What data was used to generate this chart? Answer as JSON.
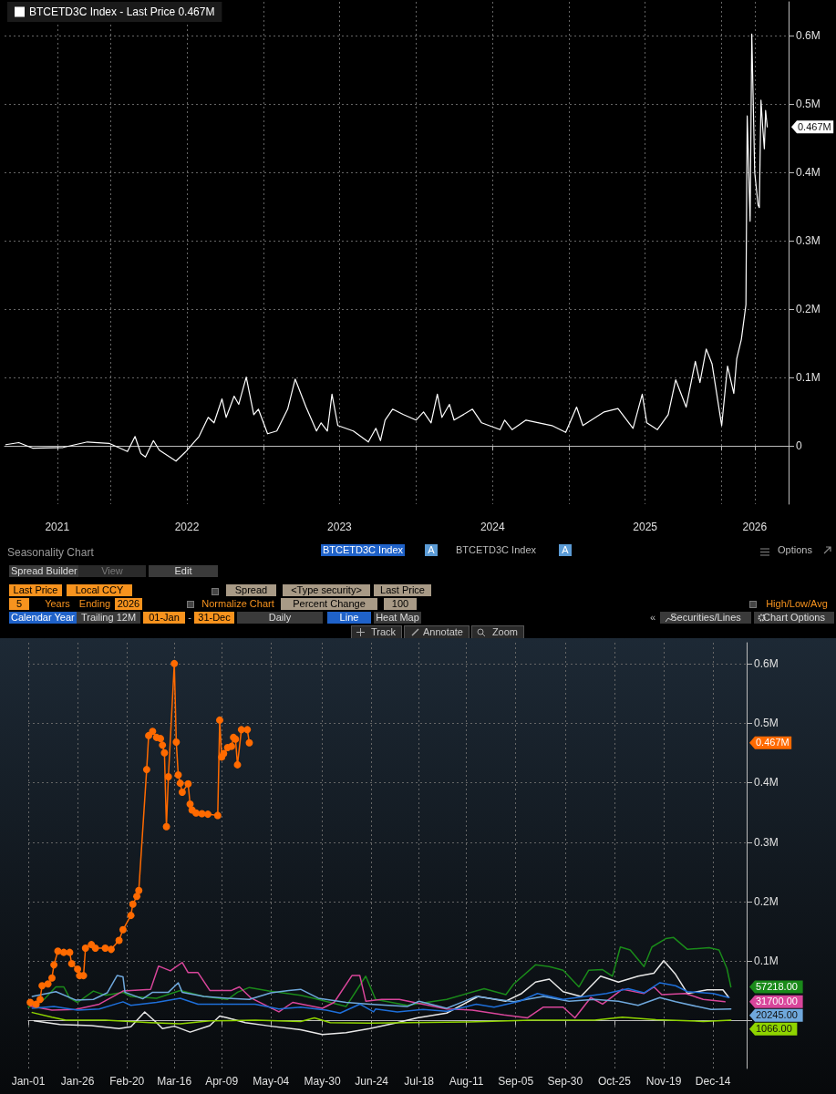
{
  "chart_data": [
    {
      "type": "line",
      "marker": "none",
      "grid": true,
      "legend": "top left",
      "x": [
        "2021-04-25",
        "2021-05-26",
        "2021-06-28",
        "2021-09-09",
        "2021-11-06",
        "2021-12-28",
        "2022-02-10",
        "2022-02-28",
        "2022-03-14",
        "2022-03-25",
        "2022-04-13",
        "2022-04-27",
        "2022-06-06",
        "2022-06-28",
        "2022-07-31",
        "2022-08-22",
        "2022-09-05",
        "2022-09-24",
        "2022-10-04",
        "2022-10-23",
        "2022-11-03",
        "2022-11-21",
        "2022-12-09",
        "2022-12-20",
        "2023-01-11",
        "2023-02-02",
        "2023-02-28",
        "2023-03-18",
        "2023-04-13",
        "2023-05-08",
        "2023-05-19",
        "2023-06-03",
        "2023-06-14",
        "2023-06-28",
        "2023-08-04",
        "2023-09-09",
        "2023-09-27",
        "2023-10-08",
        "2023-10-19",
        "2023-11-06",
        "2023-12-02",
        "2024-01-01",
        "2024-01-19",
        "2024-02-06",
        "2024-02-21",
        "2024-03-03",
        "2024-03-21",
        "2024-04-01",
        "2024-05-15",
        "2024-06-06",
        "2024-07-20",
        "2024-07-31",
        "2024-08-18",
        "2024-09-20",
        "2024-11-21",
        "2024-12-24",
        "2025-01-19",
        "2025-02-03",
        "2025-03-26",
        "2025-04-28",
        "2025-06-03",
        "2025-06-25",
        "2025-07-06",
        "2025-07-31",
        "2025-08-26",
        "2025-09-13",
        "2025-10-08",
        "2025-10-30",
        "2025-11-10",
        "2025-11-25",
        "2025-12-09",
        "2026-01-01",
        "2026-01-15",
        "2026-01-30",
        "2026-02-06",
        "2026-02-17",
        "2026-02-28",
        "2026-03-03",
        "2026-03-10",
        "2026-03-14",
        "2026-03-21",
        "2026-03-29",
        "2026-04-01",
        "2026-04-05",
        "2026-04-09",
        "2026-04-13",
        "2026-04-16",
        "2026-04-20"
      ],
      "series": [
        {
          "name": "BTCETD3C Index - Last Price 0.467M",
          "color": "#ffffff",
          "values": [
            0.002,
            0.005,
            -0.003,
            -0.002,
            0.006,
            0.004,
            -0.008,
            0.014,
            -0.011,
            -0.016,
            0.008,
            -0.006,
            -0.022,
            -0.009,
            0.014,
            0.042,
            0.034,
            0.069,
            0.042,
            0.073,
            0.061,
            0.101,
            0.046,
            0.054,
            0.018,
            0.022,
            0.054,
            0.098,
            0.057,
            0.022,
            0.034,
            0.022,
            0.076,
            0.03,
            0.022,
            0.006,
            0.026,
            0.008,
            0.038,
            0.054,
            0.046,
            0.038,
            0.05,
            0.034,
            0.076,
            0.042,
            0.061,
            0.038,
            0.054,
            0.034,
            0.024,
            0.038,
            0.024,
            0.038,
            0.03,
            0.02,
            0.057,
            0.03,
            0.05,
            0.055,
            0.026,
            0.076,
            0.034,
            0.024,
            0.046,
            0.097,
            0.057,
            0.124,
            0.093,
            0.142,
            0.12,
            0.03,
            0.117,
            0.077,
            0.128,
            0.156,
            0.207,
            0.483,
            0.329,
            0.603,
            0.4,
            0.353,
            0.349,
            0.506,
            0.467,
            0.435,
            0.491,
            0.467
          ]
        }
      ],
      "xlim": [
        "2021-04-22",
        "2026-06-10"
      ],
      "xticks": [
        {
          "value": "2021-08-26",
          "label": "2021"
        },
        {
          "value": "2022-01-01",
          "label": null
        },
        {
          "value": "2022-07-02",
          "label": "2022"
        },
        {
          "value": "2023-01-01",
          "label": null
        },
        {
          "value": "2023-07-02",
          "label": "2023"
        },
        {
          "value": "2024-01-01",
          "label": null
        },
        {
          "value": "2024-07-02",
          "label": "2024"
        },
        {
          "value": "2025-01-01",
          "label": null
        },
        {
          "value": "2025-07-02",
          "label": "2025"
        },
        {
          "value": "2026-01-01",
          "label": null
        },
        {
          "value": "2026-03-21",
          "label": "2026"
        }
      ],
      "ylim": [
        -0.085,
        0.65
      ],
      "yticks": [
        0,
        {
          "value": 0.1,
          "label": "0.1M"
        },
        {
          "value": 0.2,
          "label": "0.2M"
        },
        {
          "value": 0.3,
          "label": "0.3M"
        },
        {
          "value": 0.4,
          "label": "0.4M"
        },
        {
          "value": 0.5,
          "label": "0.5M"
        },
        {
          "value": 0.6,
          "label": "0.6M"
        }
      ],
      "annotations": [
        "0.467M"
      ]
    },
    {
      "type": "line",
      "title": "Seasonality Chart",
      "marker": "none",
      "grid": true,
      "series": [
        {
          "color": "#ff6a00",
          "marker": "circle",
          "x": [
            "--01-02",
            "--01-05",
            "--01-07",
            "--01-08",
            "--01-11",
            "--01-13",
            "--01-14",
            "--01-16",
            "--01-19",
            "--01-22",
            "--01-23",
            "--01-26",
            "--01-27",
            "--01-29",
            "--01-30",
            "--02-02",
            "--02-04",
            "--02-09",
            "--02-12",
            "--02-16",
            "--02-18",
            "--02-22",
            "--02-23",
            "--02-25",
            "--02-26",
            "--03-02",
            "--03-03",
            "--03-05",
            "--03-07",
            "--03-09",
            "--03-10",
            "--03-11",
            "--03-12",
            "--03-13",
            "--03-16",
            "--03-17",
            "--03-18",
            "--03-19",
            "--03-20",
            "--03-23",
            "--03-24",
            "--03-25",
            "--03-27",
            "--03-30",
            "--04-02",
            "--04-07",
            "--04-08",
            "--04-09",
            "--04-10",
            "--04-12",
            "--04-14",
            "--04-15",
            "--04-16",
            "--04-17",
            "--04-19",
            "--04-22",
            "--04-23"
          ],
          "values": [
            0.031,
            0.028,
            0.036,
            0.059,
            0.062,
            0.072,
            0.094,
            0.117,
            0.115,
            0.115,
            0.096,
            0.087,
            0.076,
            0.076,
            0.122,
            0.128,
            0.122,
            0.122,
            0.12,
            0.135,
            0.153,
            0.177,
            0.196,
            0.209,
            0.219,
            0.422,
            0.479,
            0.486,
            0.476,
            0.474,
            0.463,
            0.45,
            0.326,
            0.41,
            0.6,
            0.468,
            0.413,
            0.399,
            0.384,
            0.398,
            0.364,
            0.354,
            0.349,
            0.348,
            0.347,
            0.345,
            0.505,
            0.443,
            0.449,
            0.459,
            0.461,
            0.476,
            0.473,
            0.43,
            0.489,
            0.489,
            0.467
          ]
        },
        {
          "color": "#1a8a1a",
          "x": [
            "--01-01",
            "--01-09",
            "--01-15",
            "--01-19",
            "--01-22",
            "--01-26",
            "--02-03",
            "--02-09",
            "--02-18",
            "--02-22",
            "--03-07",
            "--03-19",
            "--03-31",
            "--04-12",
            "--04-17",
            "--04-23",
            "--05-03",
            "--05-19",
            "--05-28",
            "--06-11",
            "--06-21",
            "--06-26",
            "--07-12",
            "--08-01",
            "--08-20",
            "--08-31",
            "--09-04",
            "--09-15",
            "--09-22",
            "--09-29",
            "--10-07",
            "--10-12",
            "--10-19",
            "--10-24",
            "--10-28",
            "--11-02",
            "--11-09",
            "--11-13",
            "--11-20",
            "--11-24",
            "--12-01",
            "--12-12",
            "--12-17",
            "--12-21",
            "--12-23"
          ],
          "values": [
            0.023,
            0.036,
            0.057,
            0.057,
            0.038,
            0.031,
            0.05,
            0.043,
            0.048,
            0.041,
            0.038,
            0.051,
            0.041,
            0.036,
            0.048,
            0.056,
            0.05,
            0.043,
            0.036,
            0.024,
            0.075,
            0.036,
            0.026,
            0.036,
            0.054,
            0.044,
            0.062,
            0.094,
            0.091,
            0.085,
            0.057,
            0.085,
            0.086,
            0.075,
            0.124,
            0.119,
            0.091,
            0.124,
            0.138,
            0.14,
            0.12,
            0.123,
            0.119,
            0.088,
            0.057
          ]
        },
        {
          "color": "#e8e8e8",
          "x": [
            "--01-04",
            "--01-17",
            "--02-02",
            "--02-16",
            "--02-22",
            "--03-01",
            "--03-07",
            "--03-10",
            "--03-16",
            "--03-24",
            "--04-03",
            "--04-08",
            "--04-12",
            "--04-21",
            "--05-04",
            "--05-19",
            "--05-30",
            "--06-11",
            "--06-23",
            "--07-07",
            "--07-17",
            "--08-01",
            "--08-14",
            "--08-17",
            "--08-31",
            "--09-08",
            "--09-15",
            "--09-22",
            "--09-29",
            "--10-08",
            "--10-18",
            "--10-27",
            "--11-06",
            "--11-14",
            "--11-19",
            "--11-25",
            "--12-01",
            "--12-11",
            "--12-19",
            "--12-22"
          ],
          "values": [
            0.0,
            -0.006,
            -0.008,
            -0.013,
            -0.01,
            0.015,
            -0.003,
            -0.013,
            -0.009,
            -0.019,
            -0.008,
            0.008,
            0.005,
            -0.003,
            -0.009,
            -0.015,
            -0.023,
            -0.02,
            -0.013,
            -0.003,
            0.005,
            0.013,
            0.036,
            0.041,
            0.033,
            0.046,
            0.065,
            0.07,
            0.049,
            0.041,
            0.075,
            0.065,
            0.075,
            0.08,
            0.101,
            0.078,
            0.046,
            0.052,
            0.052,
            0.039
          ]
        },
        {
          "color": "#d9469b",
          "x": [
            "--01-02",
            "--01-13",
            "--01-25",
            "--02-06",
            "--02-18",
            "--03-04",
            "--03-08",
            "--03-14",
            "--03-20",
            "--03-23",
            "--03-28",
            "--04-03",
            "--04-14",
            "--04-18",
            "--04-24",
            "--05-08",
            "--05-15",
            "--05-30",
            "--06-05",
            "--06-14",
            "--06-18",
            "--06-21",
            "--06-29",
            "--07-08",
            "--08-01",
            "--08-14",
            "--08-30",
            "--09-11",
            "--09-19",
            "--09-29",
            "--10-05",
            "--10-13",
            "--10-19",
            "--10-29",
            "--11-09",
            "--11-14",
            "--11-18",
            "--11-30",
            "--12-09",
            "--12-20"
          ],
          "values": [
            0.025,
            0.018,
            0.019,
            0.028,
            0.05,
            0.053,
            0.092,
            0.084,
            0.098,
            0.081,
            0.081,
            0.051,
            0.051,
            0.057,
            0.038,
            0.015,
            0.031,
            0.021,
            0.031,
            0.076,
            0.076,
            0.033,
            0.036,
            0.036,
            0.02,
            0.018,
            0.01,
            0.005,
            0.023,
            0.023,
            0.005,
            0.039,
            0.028,
            0.053,
            0.046,
            0.057,
            0.044,
            0.046,
            0.036,
            0.032
          ]
        },
        {
          "color": "#6fa8dc",
          "x": [
            "--01-03",
            "--01-15",
            "--01-25",
            "--02-03",
            "--02-10",
            "--02-15",
            "--02-18",
            "--02-19",
            "--02-28",
            "--03-05",
            "--03-13",
            "--03-18",
            "--03-20",
            "--03-31",
            "--04-12",
            "--04-23",
            "--05-04",
            "--05-13",
            "--05-19",
            "--05-28",
            "--06-11",
            "--06-23",
            "--07-12",
            "--07-18",
            "--08-01",
            "--08-16",
            "--09-04",
            "--09-19",
            "--10-02",
            "--10-15",
            "--10-27",
            "--11-06",
            "--11-17",
            "--11-25",
            "--12-06",
            "--12-13",
            "--12-23"
          ],
          "values": [
            0.041,
            0.049,
            0.035,
            0.036,
            0.047,
            0.076,
            0.074,
            0.048,
            0.037,
            0.048,
            0.048,
            0.064,
            0.048,
            0.041,
            0.038,
            0.036,
            0.047,
            0.051,
            0.053,
            0.038,
            0.031,
            0.028,
            0.024,
            0.033,
            0.021,
            0.041,
            0.032,
            0.041,
            0.033,
            0.036,
            0.033,
            0.026,
            0.039,
            0.032,
            0.024,
            0.019,
            0.02
          ]
        },
        {
          "color": "#1e6fd9",
          "x": [
            "--01-03",
            "--01-14",
            "--01-26",
            "--02-06",
            "--02-18",
            "--02-22",
            "--03-07",
            "--03-19",
            "--03-28",
            "--04-11",
            "--04-26",
            "--05-08",
            "--05-19",
            "--06-01",
            "--06-08",
            "--06-18",
            "--06-25",
            "--06-26",
            "--07-07",
            "--07-20",
            "--08-01",
            "--08-16",
            "--08-25",
            "--09-07",
            "--09-16",
            "--09-29",
            "--10-10",
            "--10-21",
            "--11-01",
            "--11-09",
            "--11-17",
            "--11-25",
            "--12-01",
            "--12-14",
            "--12-22"
          ],
          "values": [
            0.021,
            0.024,
            0.018,
            0.02,
            0.032,
            0.026,
            0.031,
            0.038,
            0.028,
            0.028,
            0.028,
            0.02,
            0.023,
            0.018,
            0.013,
            0.028,
            0.015,
            0.02,
            0.015,
            0.019,
            0.016,
            0.028,
            0.023,
            0.033,
            0.046,
            0.036,
            0.041,
            0.046,
            0.054,
            0.047,
            0.064,
            0.059,
            0.049,
            0.046,
            0.039
          ]
        },
        {
          "color": "#8fd400",
          "x": [
            "--01-03",
            "--01-13",
            "--01-20",
            "--02-09",
            "--03-04",
            "--03-19",
            "--04-03",
            "--04-26",
            "--05-19",
            "--05-26",
            "--06-03",
            "--06-23",
            "--07-12",
            "--08-12",
            "--09-13",
            "--10-15",
            "--10-29",
            "--11-15",
            "--12-09",
            "--12-23"
          ],
          "values": [
            0.014,
            0.006,
            0.001,
            0.001,
            -0.003,
            -0.005,
            0.0,
            0.001,
            -0.001,
            0.005,
            -0.003,
            -0.004,
            -0.003,
            -0.002,
            0.001,
            0.001,
            0.006,
            0.002,
            -0.001,
            0.001
          ]
        }
      ],
      "xlim": [
        "--01-01",
        "--12-31"
      ],
      "xticks": [
        {
          "value": "--01-01",
          "label": "Jan-01"
        },
        {
          "value": "--01-26",
          "label": "Jan-26"
        },
        {
          "value": "--02-20",
          "label": "Feb-20"
        },
        {
          "value": "--03-16",
          "label": "Mar-16"
        },
        {
          "value": "--04-09",
          "label": "Apr-09"
        },
        {
          "value": "--05-04",
          "label": "May-04"
        },
        {
          "value": "--05-30",
          "label": "May-30"
        },
        {
          "value": "--06-24",
          "label": "Jun-24"
        },
        {
          "value": "--07-18",
          "label": "Jul-18"
        },
        {
          "value": "--08-11",
          "label": "Aug-11"
        },
        {
          "value": "--09-05",
          "label": "Sep-05"
        },
        {
          "value": "--09-30",
          "label": "Sep-30"
        },
        {
          "value": "--10-25",
          "label": "Oct-25"
        },
        {
          "value": "--11-19",
          "label": "Nov-19"
        },
        {
          "value": "--12-14",
          "label": "Dec-14"
        }
      ],
      "ylim": [
        -0.08,
        0.635
      ],
      "yticks": [
        {
          "value": 0,
          "label": null
        },
        {
          "value": 0.1,
          "label": "0.1M"
        },
        {
          "value": 0.2,
          "label": "0.2M"
        },
        {
          "value": 0.3,
          "label": "0.3M"
        },
        {
          "value": 0.4,
          "label": "0.4M"
        },
        {
          "value": 0.5,
          "label": "0.5M"
        },
        {
          "value": 0.6,
          "label": "0.6M"
        }
      ],
      "annotations": [
        "BTCETD3C Index",
        "A",
        "BTCETD3C Index",
        "A",
        "Options",
        "Spread Builder",
        "View",
        "Edit",
        "Last Price",
        "Local CCY",
        "Spread",
        "<Type security>",
        "Last Price",
        "5",
        "Years",
        "Ending",
        "2026",
        "Normalize Chart",
        "Percent Change",
        "100",
        "High/Low/Avg",
        "Calendar Year",
        "Trailing 12M",
        "01-Jan",
        "-",
        "31-Dec",
        "Daily",
        "Line",
        "Heat Map",
        "«",
        "Securities/Lines",
        "Chart Options",
        "Track",
        "Annotate",
        "Zoom",
        "0.467M",
        "57218.00",
        "31700.00",
        "20245.00",
        "1066.00"
      ]
    }
  ]
}
